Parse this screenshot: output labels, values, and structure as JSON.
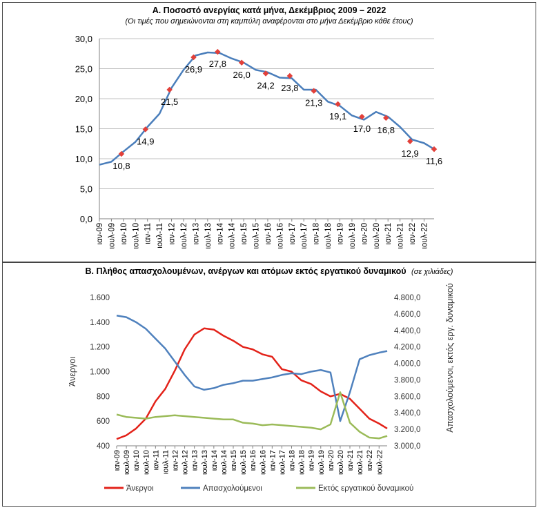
{
  "colors": {
    "unemployment_line": "#4a7ebb",
    "marker": "#e2403a",
    "unemployed": "#e32219",
    "employed": "#4f81bd",
    "inactive": "#9bbb59",
    "grid": "#c0c0c0",
    "axis": "#808080"
  },
  "panelA": {
    "title": "Α. Ποσοστό ανεργίας κατά μήνα, Δεκέμβριος 2009 – 2022",
    "subtitle": "(Οι τιμές που σημειώνονται στη καμπύλη αναφέρονται στο μήνα Δεκέμβριο κάθε έτους)"
  },
  "panelB": {
    "title": "Β. Πλήθος απασχολουμένων, ανέργων και ατόμων εκτός εργατικού δυναμικού",
    "title_note": "(σε χιλιάδες)"
  },
  "chart_data": [
    {
      "type": "line",
      "title": "Α. Ποσοστό ανεργίας κατά μήνα, Δεκέμβριος 2009 – 2022",
      "ylim": [
        0,
        30
      ],
      "yticks": [
        "0,0",
        "5,0",
        "10,0",
        "15,0",
        "20,0",
        "25,0",
        "30,0"
      ],
      "xticks": [
        "ιαν-09",
        "ιουλ-09",
        "ιαν-10",
        "ιουλ-10",
        "ιαν-11",
        "ιουλ-11",
        "ιαν-12",
        "ιουλ-12",
        "ιαν-13",
        "ιουλ-13",
        "ιαν-14",
        "ιουλ-14",
        "ιαν-15",
        "ιουλ-15",
        "ιαν-16",
        "ιουλ-16",
        "ιαν-17",
        "ιουλ-17",
        "ιαν-18",
        "ιουλ-18",
        "ιαν-19",
        "ιουλ-19",
        "ιαν-20",
        "ιουλ-20",
        "ιαν-21",
        "ιουλ-21",
        "ιαν-22",
        "ιουλ-22"
      ],
      "grid": true,
      "series": [
        {
          "x": [
            "ιαν-09",
            "ιουλ-09",
            "ιαν-10",
            "ιουλ-10",
            "ιαν-11",
            "ιουλ-11",
            "ιαν-12",
            "ιουλ-12",
            "ιαν-13",
            "ιουλ-13",
            "ιαν-14",
            "ιουλ-14",
            "ιαν-15",
            "ιουλ-15",
            "ιαν-16",
            "ιουλ-16",
            "ιαν-17",
            "ιουλ-17",
            "ιαν-18",
            "ιουλ-18",
            "ιαν-19",
            "ιουλ-19",
            "ιαν-20",
            "ιουλ-20",
            "ιαν-21",
            "ιουλ-21",
            "ιαν-22",
            "ιουλ-22",
            "δεκ-22"
          ],
          "values": [
            9.0,
            9.5,
            11.2,
            12.8,
            15.3,
            17.5,
            21.8,
            24.8,
            27.2,
            27.7,
            27.6,
            26.7,
            26.0,
            24.8,
            24.4,
            23.5,
            23.4,
            21.5,
            21.5,
            19.5,
            18.8,
            17.2,
            16.5,
            17.8,
            17.0,
            15.3,
            13.2,
            12.6,
            11.6
          ]
        }
      ],
      "december_labels": [
        {
          "x": "δεκ-09",
          "value": 10.8,
          "label": "10,8"
        },
        {
          "x": "δεκ-10",
          "value": 14.9,
          "label": "14,9"
        },
        {
          "x": "δεκ-11",
          "value": 21.5,
          "label": "21,5"
        },
        {
          "x": "δεκ-12",
          "value": 26.9,
          "label": "26,9"
        },
        {
          "x": "δεκ-13",
          "value": 27.8,
          "label": "27,8"
        },
        {
          "x": "δεκ-14",
          "value": 26.0,
          "label": "26,0"
        },
        {
          "x": "δεκ-15",
          "value": 24.2,
          "label": "24,2"
        },
        {
          "x": "δεκ-16",
          "value": 23.8,
          "label": "23,8"
        },
        {
          "x": "δεκ-17",
          "value": 21.3,
          "label": "21,3"
        },
        {
          "x": "δεκ-18",
          "value": 19.1,
          "label": "19,1"
        },
        {
          "x": "δεκ-19",
          "value": 17.0,
          "label": "17,0"
        },
        {
          "x": "δεκ-20",
          "value": 16.8,
          "label": "16,8"
        },
        {
          "x": "δεκ-21",
          "value": 12.9,
          "label": "12,9"
        },
        {
          "x": "δεκ-22",
          "value": 11.6,
          "label": "11,6"
        }
      ]
    },
    {
      "type": "line",
      "title": "Β. Πλήθος απασχολουμένων, ανέργων και ατόμων εκτός εργατικού δυναμικού",
      "ylabel_left": "Άνεργοι",
      "ylabel_right": "Απασχολούμενοι, εκτός εργ. δυναμικού",
      "ylim_left": [
        400,
        1600
      ],
      "ylim_right": [
        3000,
        4800
      ],
      "yticks_left": [
        "400",
        "600",
        "800",
        "1.000",
        "1.200",
        "1.400",
        "1.600"
      ],
      "yticks_right": [
        "3.000,0",
        "3.200,0",
        "3.400,0",
        "3.600,0",
        "3.800,0",
        "4.000,0",
        "4.200,0",
        "4.400,0",
        "4.600,0",
        "4.800,0"
      ],
      "xticks": [
        "ιαν-09",
        "ιουλ-09",
        "ιαν-10",
        "ιουλ-10",
        "ιαν-11",
        "ιουλ-11",
        "ιαν-12",
        "ιουλ-12",
        "ιαν-13",
        "ιουλ-13",
        "ιαν-14",
        "ιουλ-14",
        "ιαν-15",
        "ιουλ-15",
        "ιαν-16",
        "ιουλ-16",
        "ιαν-17",
        "ιουλ-17",
        "ιαν-18",
        "ιουλ-18",
        "ιαν-19",
        "ιουλ-19",
        "ιαν-20",
        "ιουλ-20",
        "ιαν-21",
        "ιουλ-21",
        "ιαν-22",
        "ιουλ-22"
      ],
      "legend_position": "bottom",
      "series": [
        {
          "name": "Άνεργοι",
          "axis": "left",
          "values": [
            455,
            485,
            540,
            620,
            760,
            860,
            1010,
            1180,
            1300,
            1350,
            1340,
            1290,
            1250,
            1200,
            1180,
            1140,
            1120,
            1020,
            1000,
            930,
            900,
            840,
            800,
            820,
            780,
            700,
            620,
            580,
            540
          ]
        },
        {
          "name": "Απασχολούμενοι",
          "axis": "right",
          "values": [
            4580,
            4560,
            4500,
            4420,
            4300,
            4180,
            4020,
            3860,
            3720,
            3680,
            3700,
            3740,
            3760,
            3790,
            3790,
            3810,
            3830,
            3860,
            3880,
            3870,
            3900,
            3920,
            3890,
            3300,
            3650,
            4050,
            4100,
            4130,
            4150
          ]
        },
        {
          "name": "Εκτός εργατικού δυναμικού",
          "axis": "right",
          "values": [
            3380,
            3350,
            3340,
            3330,
            3350,
            3360,
            3370,
            3360,
            3350,
            3340,
            3330,
            3320,
            3320,
            3280,
            3270,
            3250,
            3260,
            3250,
            3240,
            3230,
            3220,
            3200,
            3260,
            3650,
            3280,
            3170,
            3100,
            3090,
            3120
          ]
        }
      ]
    }
  ]
}
